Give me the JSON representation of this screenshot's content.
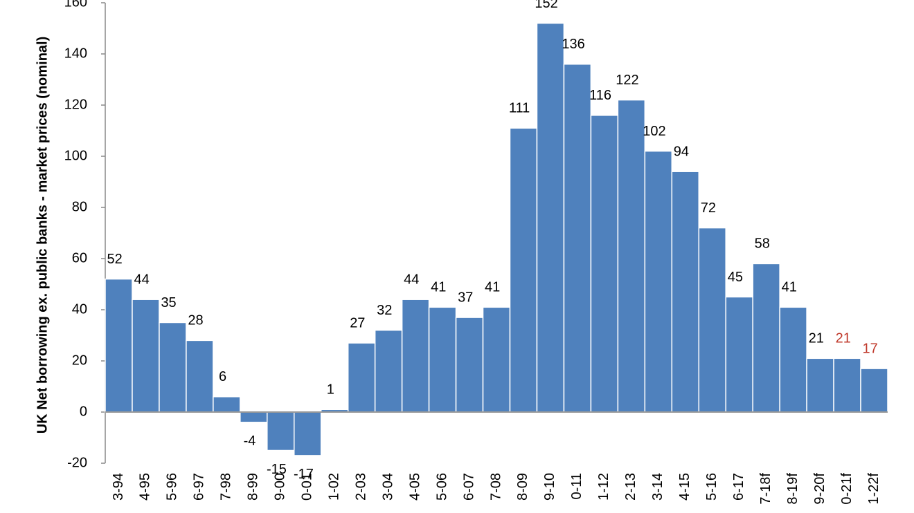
{
  "chart_data": {
    "type": "bar",
    "y_axis_label": "UK Net borrowing ex. public banks - market prices (nominal)",
    "categories": [
      "3-94",
      "4-95",
      "5-96",
      "6-97",
      "7-98",
      "8-99",
      "9-00",
      "0-01",
      "1-02",
      "2-03",
      "3-04",
      "4-05",
      "5-06",
      "6-07",
      "7-08",
      "8-09",
      "9-10",
      "0-11",
      "1-12",
      "2-13",
      "3-14",
      "4-15",
      "5-16",
      "6-17",
      "7-18f",
      "8-19f",
      "9-20f",
      "0-21f",
      "1-22f"
    ],
    "values": [
      52,
      44,
      35,
      28,
      6,
      -4,
      -15,
      -17,
      1,
      27,
      32,
      44,
      41,
      37,
      41,
      111,
      152,
      136,
      116,
      122,
      102,
      94,
      72,
      45,
      58,
      41,
      21,
      21,
      17
    ],
    "color": "#4f81bd",
    "value_label_colors": [
      "#000000",
      "#000000",
      "#000000",
      "#000000",
      "#000000",
      "#000000",
      "#000000",
      "#000000",
      "#000000",
      "#000000",
      "#000000",
      "#000000",
      "#000000",
      "#000000",
      "#000000",
      "#000000",
      "#000000",
      "#000000",
      "#000000",
      "#000000",
      "#000000",
      "#000000",
      "#000000",
      "#000000",
      "#000000",
      "#000000",
      "#000000",
      "#c0392b",
      "#c0392b"
    ],
    "ylim": [
      -20,
      160
    ],
    "yticks": [
      -20,
      0,
      20,
      40,
      60,
      80,
      100,
      120,
      140,
      160
    ],
    "grid": false
  }
}
